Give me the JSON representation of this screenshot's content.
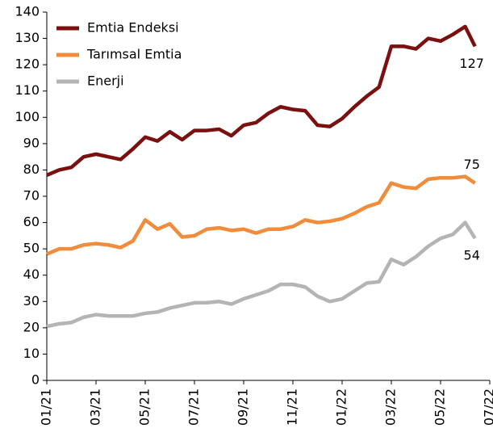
{
  "chart_data": {
    "type": "line",
    "x": [
      0,
      0.5,
      1,
      1.5,
      2,
      2.5,
      3,
      3.5,
      4,
      4.5,
      5,
      5.5,
      6,
      6.5,
      7,
      7.5,
      8,
      8.5,
      9,
      9.5,
      10,
      10.5,
      11,
      11.5,
      12,
      12.5,
      13,
      13.5,
      14,
      14.5,
      15,
      15.5,
      16,
      16.5,
      17,
      17.4
    ],
    "series": [
      {
        "name": "Emtia Endeksi",
        "color": "#7b1010",
        "values": [
          78,
          80,
          81,
          85,
          86,
          85,
          84,
          88,
          92.5,
          91,
          94.5,
          91.5,
          95,
          95,
          95.5,
          93,
          97,
          98,
          101.5,
          104,
          103,
          102.5,
          97,
          96.5,
          99.5,
          104,
          108,
          111.5,
          127,
          127,
          126,
          130,
          129,
          131.5,
          134.5,
          127
        ]
      },
      {
        "name": "Tarımsal Emtia",
        "color": "#f08c3c",
        "values": [
          48,
          50,
          50,
          51.5,
          52,
          51.5,
          50.5,
          53,
          61,
          57.5,
          59.5,
          54.5,
          55,
          57.5,
          58,
          57,
          57.5,
          56,
          57.5,
          57.5,
          58.5,
          61,
          60,
          60.5,
          61.5,
          63.5,
          66,
          67.5,
          75,
          73.5,
          73,
          76.5,
          77,
          77,
          77.5,
          75
        ]
      },
      {
        "name": "Enerji",
        "color": "#b4b4b4",
        "values": [
          20.5,
          21.5,
          22,
          24,
          25,
          24.5,
          24.5,
          24.5,
          25.5,
          26,
          27.5,
          28.5,
          29.5,
          29.5,
          30,
          29,
          31,
          32.5,
          34,
          36.5,
          36.5,
          35.5,
          32,
          30,
          31,
          34,
          37,
          37.5,
          46,
          44,
          47,
          51,
          54,
          55.5,
          60,
          54
        ]
      }
    ],
    "xlim": [
      0,
      18
    ],
    "xticks": [
      {
        "value": 0,
        "label": "01/21"
      },
      {
        "value": 2,
        "label": "03/21"
      },
      {
        "value": 4,
        "label": "05/21"
      },
      {
        "value": 6,
        "label": "07/21"
      },
      {
        "value": 8,
        "label": "09/21"
      },
      {
        "value": 10,
        "label": "11/21"
      },
      {
        "value": 12,
        "label": "01/22"
      },
      {
        "value": 14,
        "label": "03/22"
      },
      {
        "value": 16,
        "label": "05/22"
      },
      {
        "value": 18,
        "label": "07/22"
      }
    ],
    "ylim": [
      0,
      140
    ],
    "yticks": [
      0,
      10,
      20,
      30,
      40,
      50,
      60,
      70,
      80,
      90,
      100,
      110,
      120,
      130,
      140
    ],
    "legend": "upper left"
  }
}
